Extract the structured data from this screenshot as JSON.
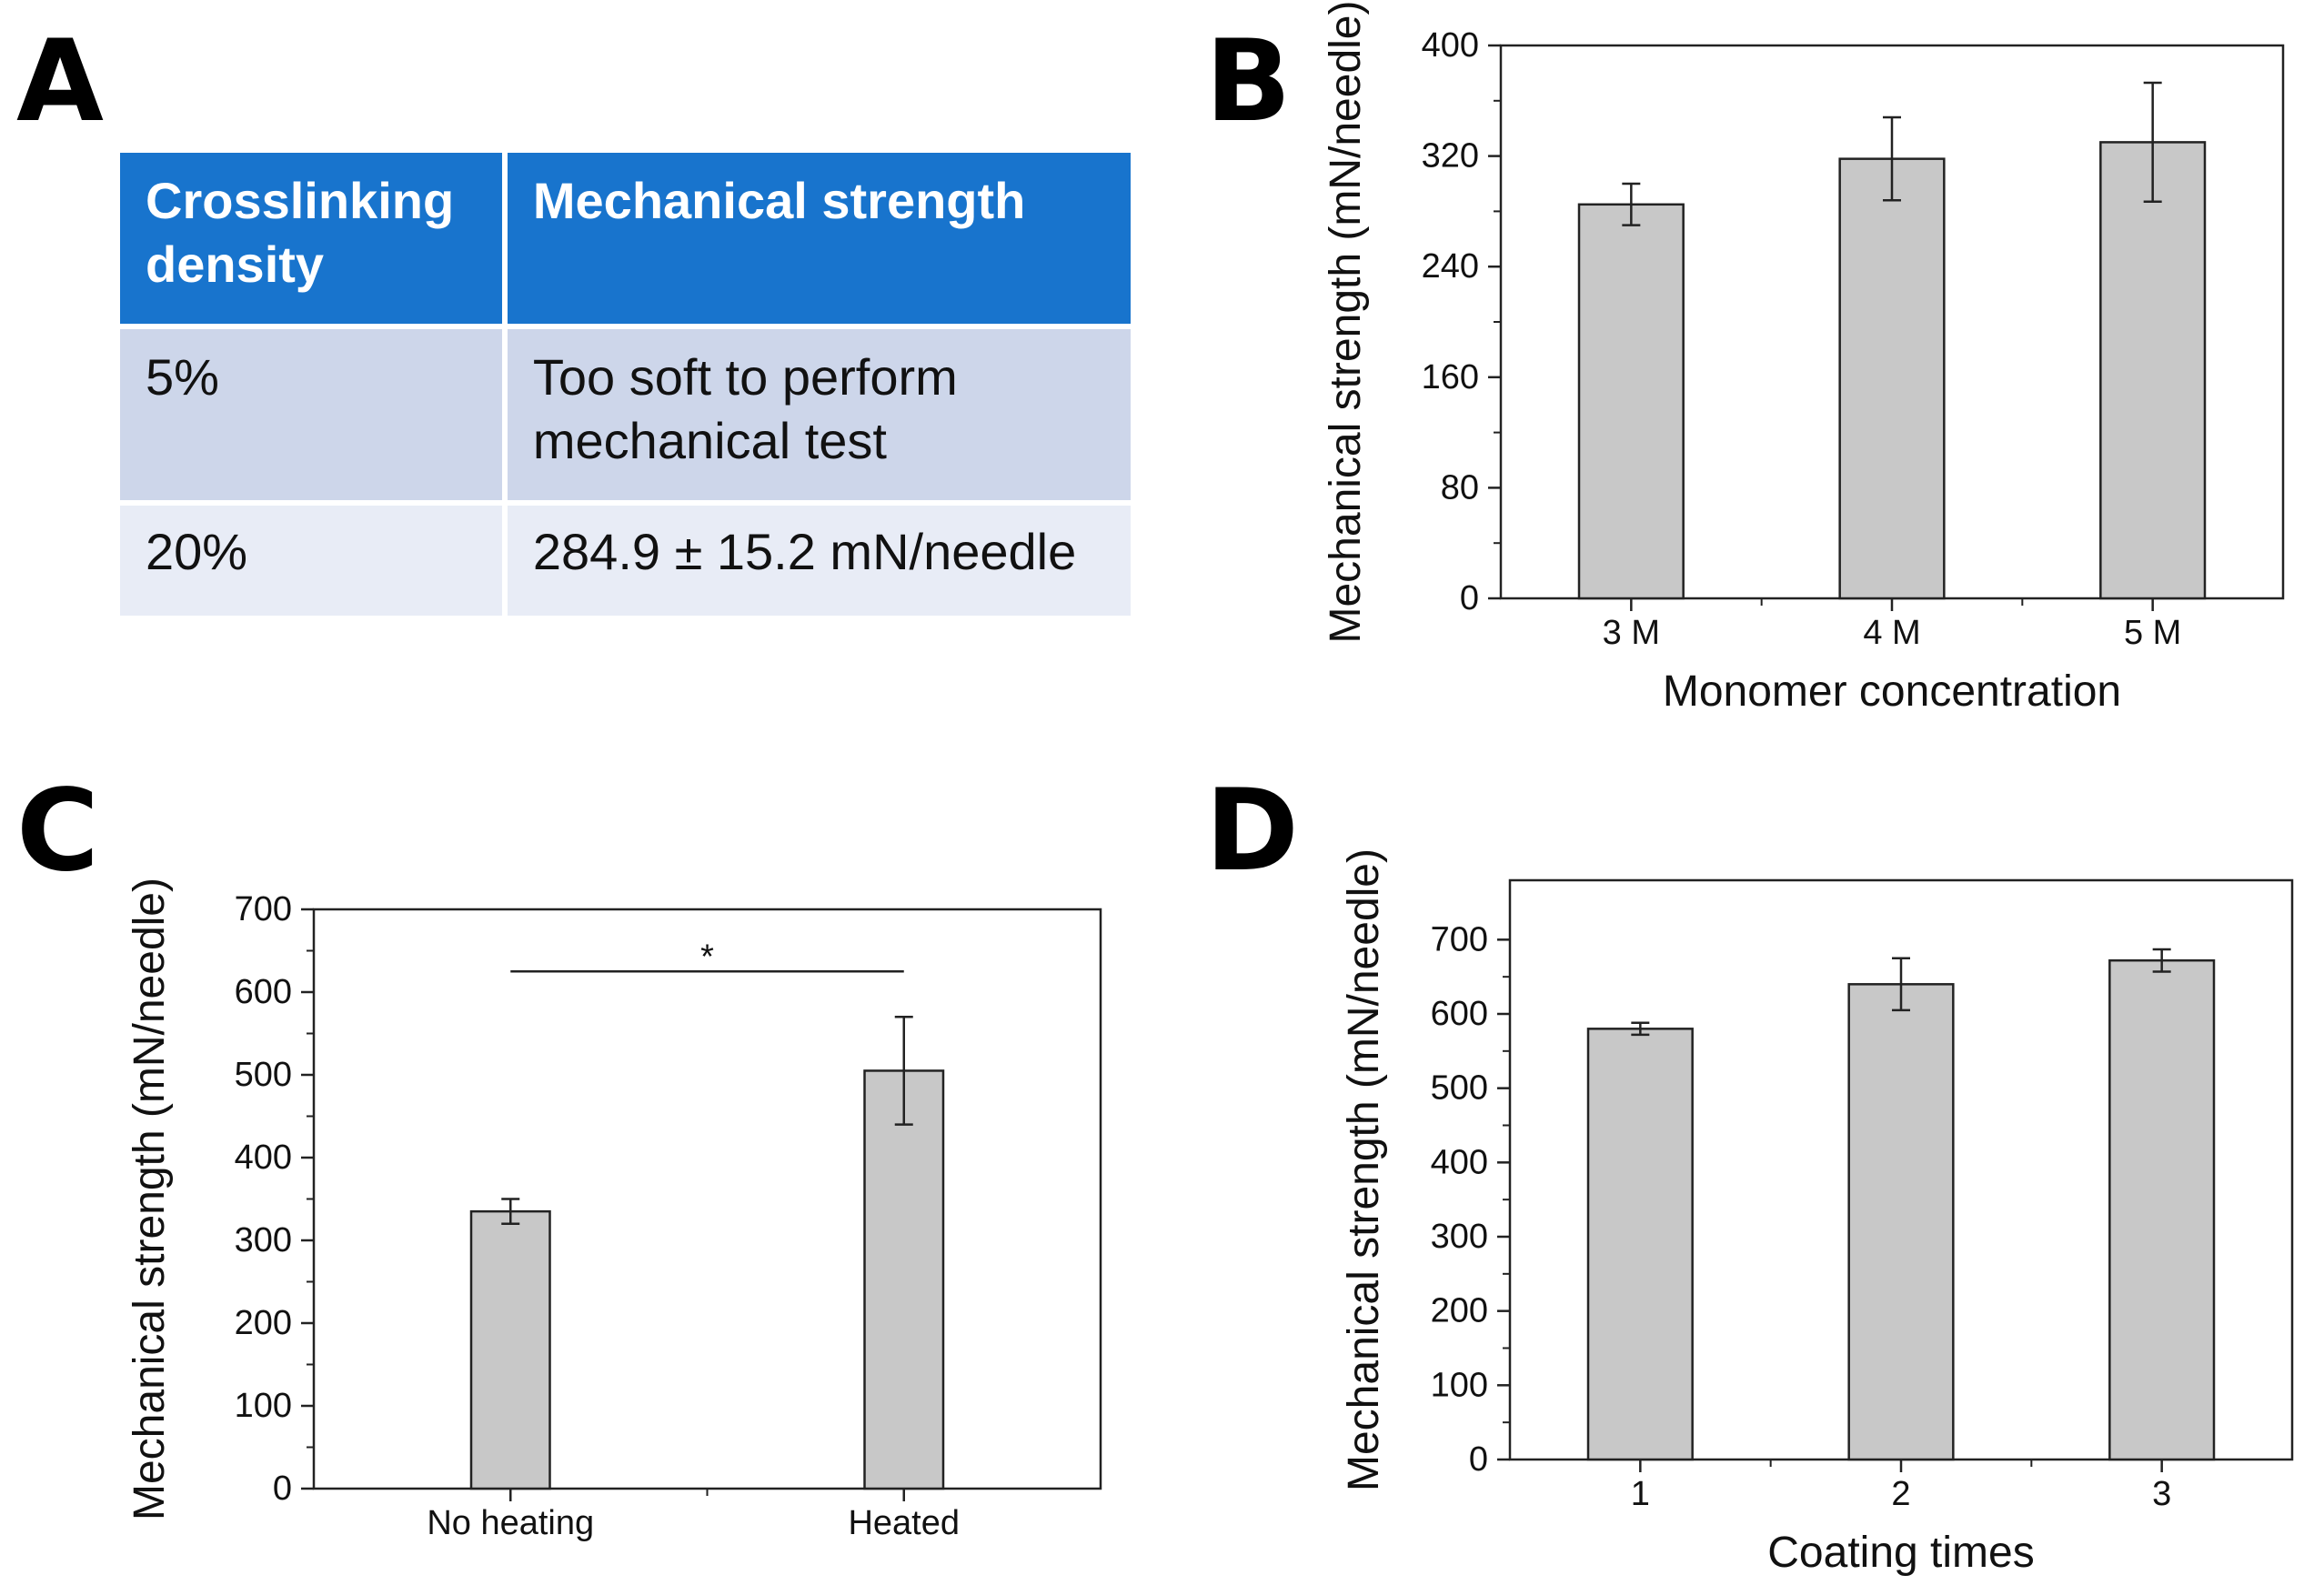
{
  "panels": {
    "a": "A",
    "b": "B",
    "c": "C",
    "d": "D"
  },
  "table": {
    "headers": [
      "Crosslinking density",
      "Mechanical strength"
    ],
    "rows": [
      {
        "density": "5%",
        "strength_line1": "Too soft to perform",
        "strength_line2": "mechanical test"
      },
      {
        "density": "20%",
        "strength_line1": "284.9 ± 15.2 mN/needle"
      }
    ],
    "header_color": "#1874cd",
    "row_colors": [
      "#cdd6ea",
      "#e8ecf6"
    ]
  },
  "chart_data": [
    {
      "panel": "B",
      "type": "bar",
      "categories": [
        "3 M",
        "4 M",
        "5 M"
      ],
      "values": [
        285,
        318,
        330
      ],
      "errors": [
        15,
        30,
        43
      ],
      "xlabel": "Monomer concentration",
      "ylabel": "Mechanical strength (mN/needle)",
      "ylim": [
        0,
        400
      ],
      "yticks": [
        0,
        80,
        160,
        240,
        320,
        400
      ],
      "bar_color": "#c8c8c8",
      "grid": false
    },
    {
      "panel": "C",
      "type": "bar",
      "categories": [
        "No heating",
        "Heated"
      ],
      "values": [
        335,
        505
      ],
      "errors": [
        15,
        65
      ],
      "xlabel": "",
      "ylabel": "Mechanical strength (mN/needle)",
      "ylim": [
        0,
        700
      ],
      "yticks": [
        0,
        100,
        200,
        300,
        400,
        500,
        600,
        700
      ],
      "significance": {
        "label": "*",
        "y": 625
      },
      "bar_color": "#c8c8c8",
      "grid": false
    },
    {
      "panel": "D",
      "type": "bar",
      "categories": [
        "1",
        "2",
        "3"
      ],
      "values": [
        580,
        640,
        672
      ],
      "errors": [
        8,
        35,
        15
      ],
      "xlabel": "Coating times",
      "ylabel": "Mechanical strength (mN/needle)",
      "ylim": [
        0,
        780
      ],
      "yticks": [
        0,
        100,
        200,
        300,
        400,
        500,
        600,
        700
      ],
      "bar_color": "#c8c8c8",
      "grid": false
    }
  ]
}
